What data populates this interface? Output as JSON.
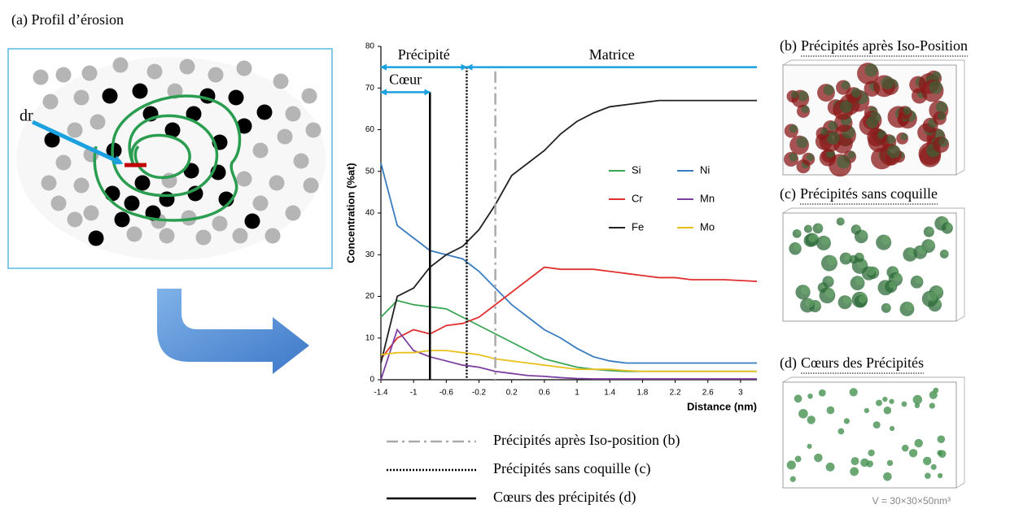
{
  "left_panel": {
    "title": "(a) Profil d’érosion",
    "label": "dr"
  },
  "chart_data": {
    "type": "line",
    "x": [
      -1.4,
      -1.2,
      -1.0,
      -0.8,
      -0.6,
      -0.4,
      -0.2,
      0.0,
      0.2,
      0.4,
      0.6,
      0.8,
      1.0,
      1.2,
      1.4,
      1.6,
      1.8,
      2.0,
      2.2,
      2.4,
      2.6,
      2.8,
      3.0,
      3.2
    ],
    "series": [
      {
        "name": "Si",
        "color": "#3aa655",
        "values": [
          15,
          19,
          18,
          17.5,
          17,
          15,
          13,
          11,
          9,
          7,
          5,
          4,
          3,
          2.5,
          2.2,
          2,
          2,
          2,
          2,
          2,
          2,
          2,
          2,
          2
        ]
      },
      {
        "name": "Ni",
        "color": "#3a7cc0",
        "values": [
          52,
          37,
          34,
          31,
          30,
          29,
          26,
          22,
          18,
          15,
          12,
          10,
          7.5,
          5.5,
          4.5,
          4,
          4,
          4,
          4,
          4,
          4,
          4,
          4,
          4
        ]
      },
      {
        "name": "Cr",
        "color": "#e03030",
        "values": [
          5,
          10,
          12,
          11,
          13,
          13.5,
          15,
          18,
          21,
          24,
          27,
          26.5,
          26.5,
          26.5,
          26,
          25.5,
          25,
          24.5,
          24.5,
          24,
          24,
          24,
          23.8,
          23.6
        ]
      },
      {
        "name": "Mn",
        "color": "#7b3fa0",
        "values": [
          0,
          12,
          7,
          5.5,
          4.5,
          3.5,
          3,
          2,
          1.5,
          1,
          0.8,
          0.5,
          0.3,
          0.2,
          0.2,
          0.2,
          0.2,
          0.2,
          0.2,
          0.2,
          0.2,
          0.2,
          0.2,
          0.2
        ]
      },
      {
        "name": "Fe",
        "color": "#222222",
        "values": [
          4,
          20,
          22,
          27,
          30,
          32,
          36,
          42,
          49,
          52,
          55,
          59,
          62,
          64,
          65.5,
          66,
          66.5,
          67,
          67,
          67,
          67,
          67,
          67,
          67
        ]
      },
      {
        "name": "Mo",
        "color": "#e8c020",
        "values": [
          6,
          6.5,
          6.5,
          7,
          7,
          6.5,
          6,
          5,
          4.5,
          4,
          3.5,
          3,
          2.5,
          2.5,
          2.5,
          2.2,
          2,
          2,
          2,
          2,
          2,
          2,
          2,
          2
        ]
      }
    ],
    "xlim": [
      -1.4,
      3.2
    ],
    "xticks": [
      -1.4,
      -1,
      -0.6,
      -0.2,
      0.2,
      0.6,
      1,
      1.4,
      1.8,
      2.2,
      2.6,
      3
    ],
    "ylim": [
      0,
      80
    ],
    "yticks": [
      0,
      10,
      20,
      30,
      40,
      50,
      60,
      70,
      80
    ],
    "xlabel": "Distance (nm)",
    "ylabel": "Concentration (%at)",
    "vlines": [
      {
        "x": 0,
        "top": 74,
        "style": "dashdot",
        "color": "#aaaaaa",
        "label": "Précipités après Iso-position (b)"
      },
      {
        "x": -0.35,
        "top": 75,
        "style": "dotted",
        "color": "#000000",
        "label": "Précipités sans coquille (c)"
      },
      {
        "x": -0.8,
        "top": 69,
        "style": "solid",
        "color": "#000000",
        "label": "Cœurs des précipités (d)"
      }
    ],
    "annotations": [
      {
        "text": "Précipité",
        "from": -1.4,
        "to": -0.35,
        "y": 75,
        "heads": "both"
      },
      {
        "text": "Matrice",
        "from": -0.35,
        "to": 3.2,
        "y": 75,
        "heads": "start"
      },
      {
        "text": "Cœur",
        "from": -1.4,
        "to": -0.8,
        "y": 69,
        "heads": "both"
      }
    ]
  },
  "right_panels": [
    {
      "label": "(b)",
      "title": "Précipités après Iso-Position",
      "color": "#8b1a1a"
    },
    {
      "label": "(c)",
      "title": "Précipités sans coquille",
      "color": "#2e6b3a"
    },
    {
      "label": "(d)",
      "title": "Cœurs des Précipités",
      "color": "#3a8a4a"
    }
  ],
  "volume": "V = 30×30×50nm³"
}
